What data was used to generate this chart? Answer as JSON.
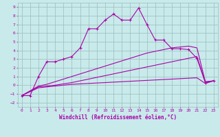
{
  "xlabel": "Windchill (Refroidissement éolien,°C)",
  "xlim": [
    -0.5,
    23.5
  ],
  "ylim": [
    -2.5,
    9.5
  ],
  "xticks": [
    0,
    1,
    2,
    3,
    4,
    5,
    6,
    7,
    8,
    9,
    10,
    11,
    12,
    13,
    14,
    15,
    16,
    17,
    18,
    19,
    20,
    21,
    22,
    23
  ],
  "yticks": [
    -2,
    -1,
    0,
    1,
    2,
    3,
    4,
    5,
    6,
    7,
    8,
    9
  ],
  "bg_color": "#c8eaea",
  "line_color": "#aa00aa",
  "grid_color": "#9bbcbc",
  "curve1_x": [
    0,
    1,
    2,
    3,
    4,
    5,
    6,
    7,
    8,
    9,
    10,
    11,
    12,
    13,
    14,
    15,
    16,
    17,
    18,
    19,
    20,
    21,
    22,
    23
  ],
  "curve1_y": [
    -1.2,
    -1.2,
    1.0,
    2.7,
    2.7,
    3.0,
    3.3,
    4.3,
    6.5,
    6.5,
    7.5,
    8.2,
    7.5,
    7.5,
    8.9,
    7.0,
    5.2,
    5.2,
    4.2,
    4.2,
    4.1,
    3.1,
    0.3,
    0.5
  ],
  "curve2_x": [
    0,
    2,
    3,
    4,
    5,
    6,
    7,
    8,
    9,
    10,
    11,
    12,
    13,
    14,
    15,
    16,
    17,
    18,
    19,
    20,
    21,
    22,
    23
  ],
  "curve2_y": [
    -1.2,
    -0.3,
    -0.2,
    -0.1,
    0.0,
    0.1,
    0.15,
    0.2,
    0.25,
    0.3,
    0.35,
    0.4,
    0.45,
    0.5,
    0.55,
    0.6,
    0.65,
    0.7,
    0.75,
    0.8,
    0.85,
    0.2,
    0.5
  ],
  "curve3_x": [
    0,
    2,
    3,
    4,
    5,
    6,
    7,
    8,
    9,
    10,
    11,
    12,
    13,
    14,
    15,
    16,
    17,
    18,
    19,
    20,
    21,
    22,
    23
  ],
  "curve3_y": [
    -1.2,
    -0.2,
    -0.1,
    0.0,
    0.15,
    0.3,
    0.5,
    0.7,
    0.9,
    1.1,
    1.3,
    1.5,
    1.7,
    1.9,
    2.1,
    2.3,
    2.5,
    2.7,
    2.9,
    3.1,
    3.3,
    0.35,
    0.5
  ],
  "curve4_x": [
    0,
    2,
    3,
    4,
    5,
    6,
    7,
    8,
    9,
    10,
    11,
    12,
    13,
    14,
    15,
    16,
    17,
    18,
    19,
    20,
    21,
    22,
    23
  ],
  "curve4_y": [
    -1.2,
    -0.1,
    0.1,
    0.4,
    0.7,
    1.0,
    1.3,
    1.6,
    1.9,
    2.2,
    2.5,
    2.8,
    3.1,
    3.4,
    3.7,
    3.9,
    4.1,
    4.3,
    4.4,
    4.5,
    4.3,
    0.4,
    0.5
  ]
}
